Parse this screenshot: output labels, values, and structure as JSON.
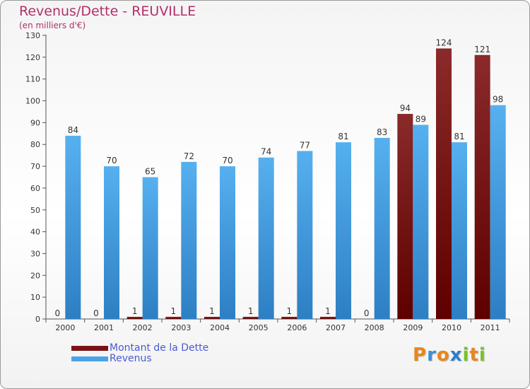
{
  "chart_data": {
    "type": "bar",
    "title": "Revenus/Dette - REUVILLE",
    "subtitle": "(en milliers d'€)",
    "categories": [
      "2000",
      "2001",
      "2002",
      "2003",
      "2004",
      "2005",
      "2006",
      "2007",
      "2008",
      "2009",
      "2010",
      "2011"
    ],
    "series": [
      {
        "name": "Montant de la Dette",
        "color": "#7a1414",
        "values": [
          0,
          0,
          1,
          1,
          1,
          1,
          1,
          1,
          0,
          94,
          124,
          121
        ]
      },
      {
        "name": "Revenus",
        "color": "#4aa3e6",
        "values": [
          84,
          70,
          65,
          72,
          70,
          74,
          77,
          81,
          83,
          89,
          81,
          98
        ]
      }
    ],
    "ylim": [
      0,
      130
    ],
    "yticks": [
      0,
      10,
      20,
      30,
      40,
      50,
      60,
      70,
      80,
      90,
      100,
      110,
      120,
      130
    ],
    "grid": false,
    "legend_position": "bottom-left"
  },
  "logo": {
    "letters": [
      {
        "ch": "P",
        "color": "#e8871c"
      },
      {
        "ch": "r",
        "color": "#3d8fd6"
      },
      {
        "ch": "o",
        "color": "#e8871c"
      },
      {
        "ch": "x",
        "color": "#2a7fc9"
      },
      {
        "ch": "i",
        "color": "#7bbf2a"
      },
      {
        "ch": "t",
        "color": "#e8871c"
      },
      {
        "ch": "i",
        "color": "#7bbf2a"
      }
    ]
  }
}
